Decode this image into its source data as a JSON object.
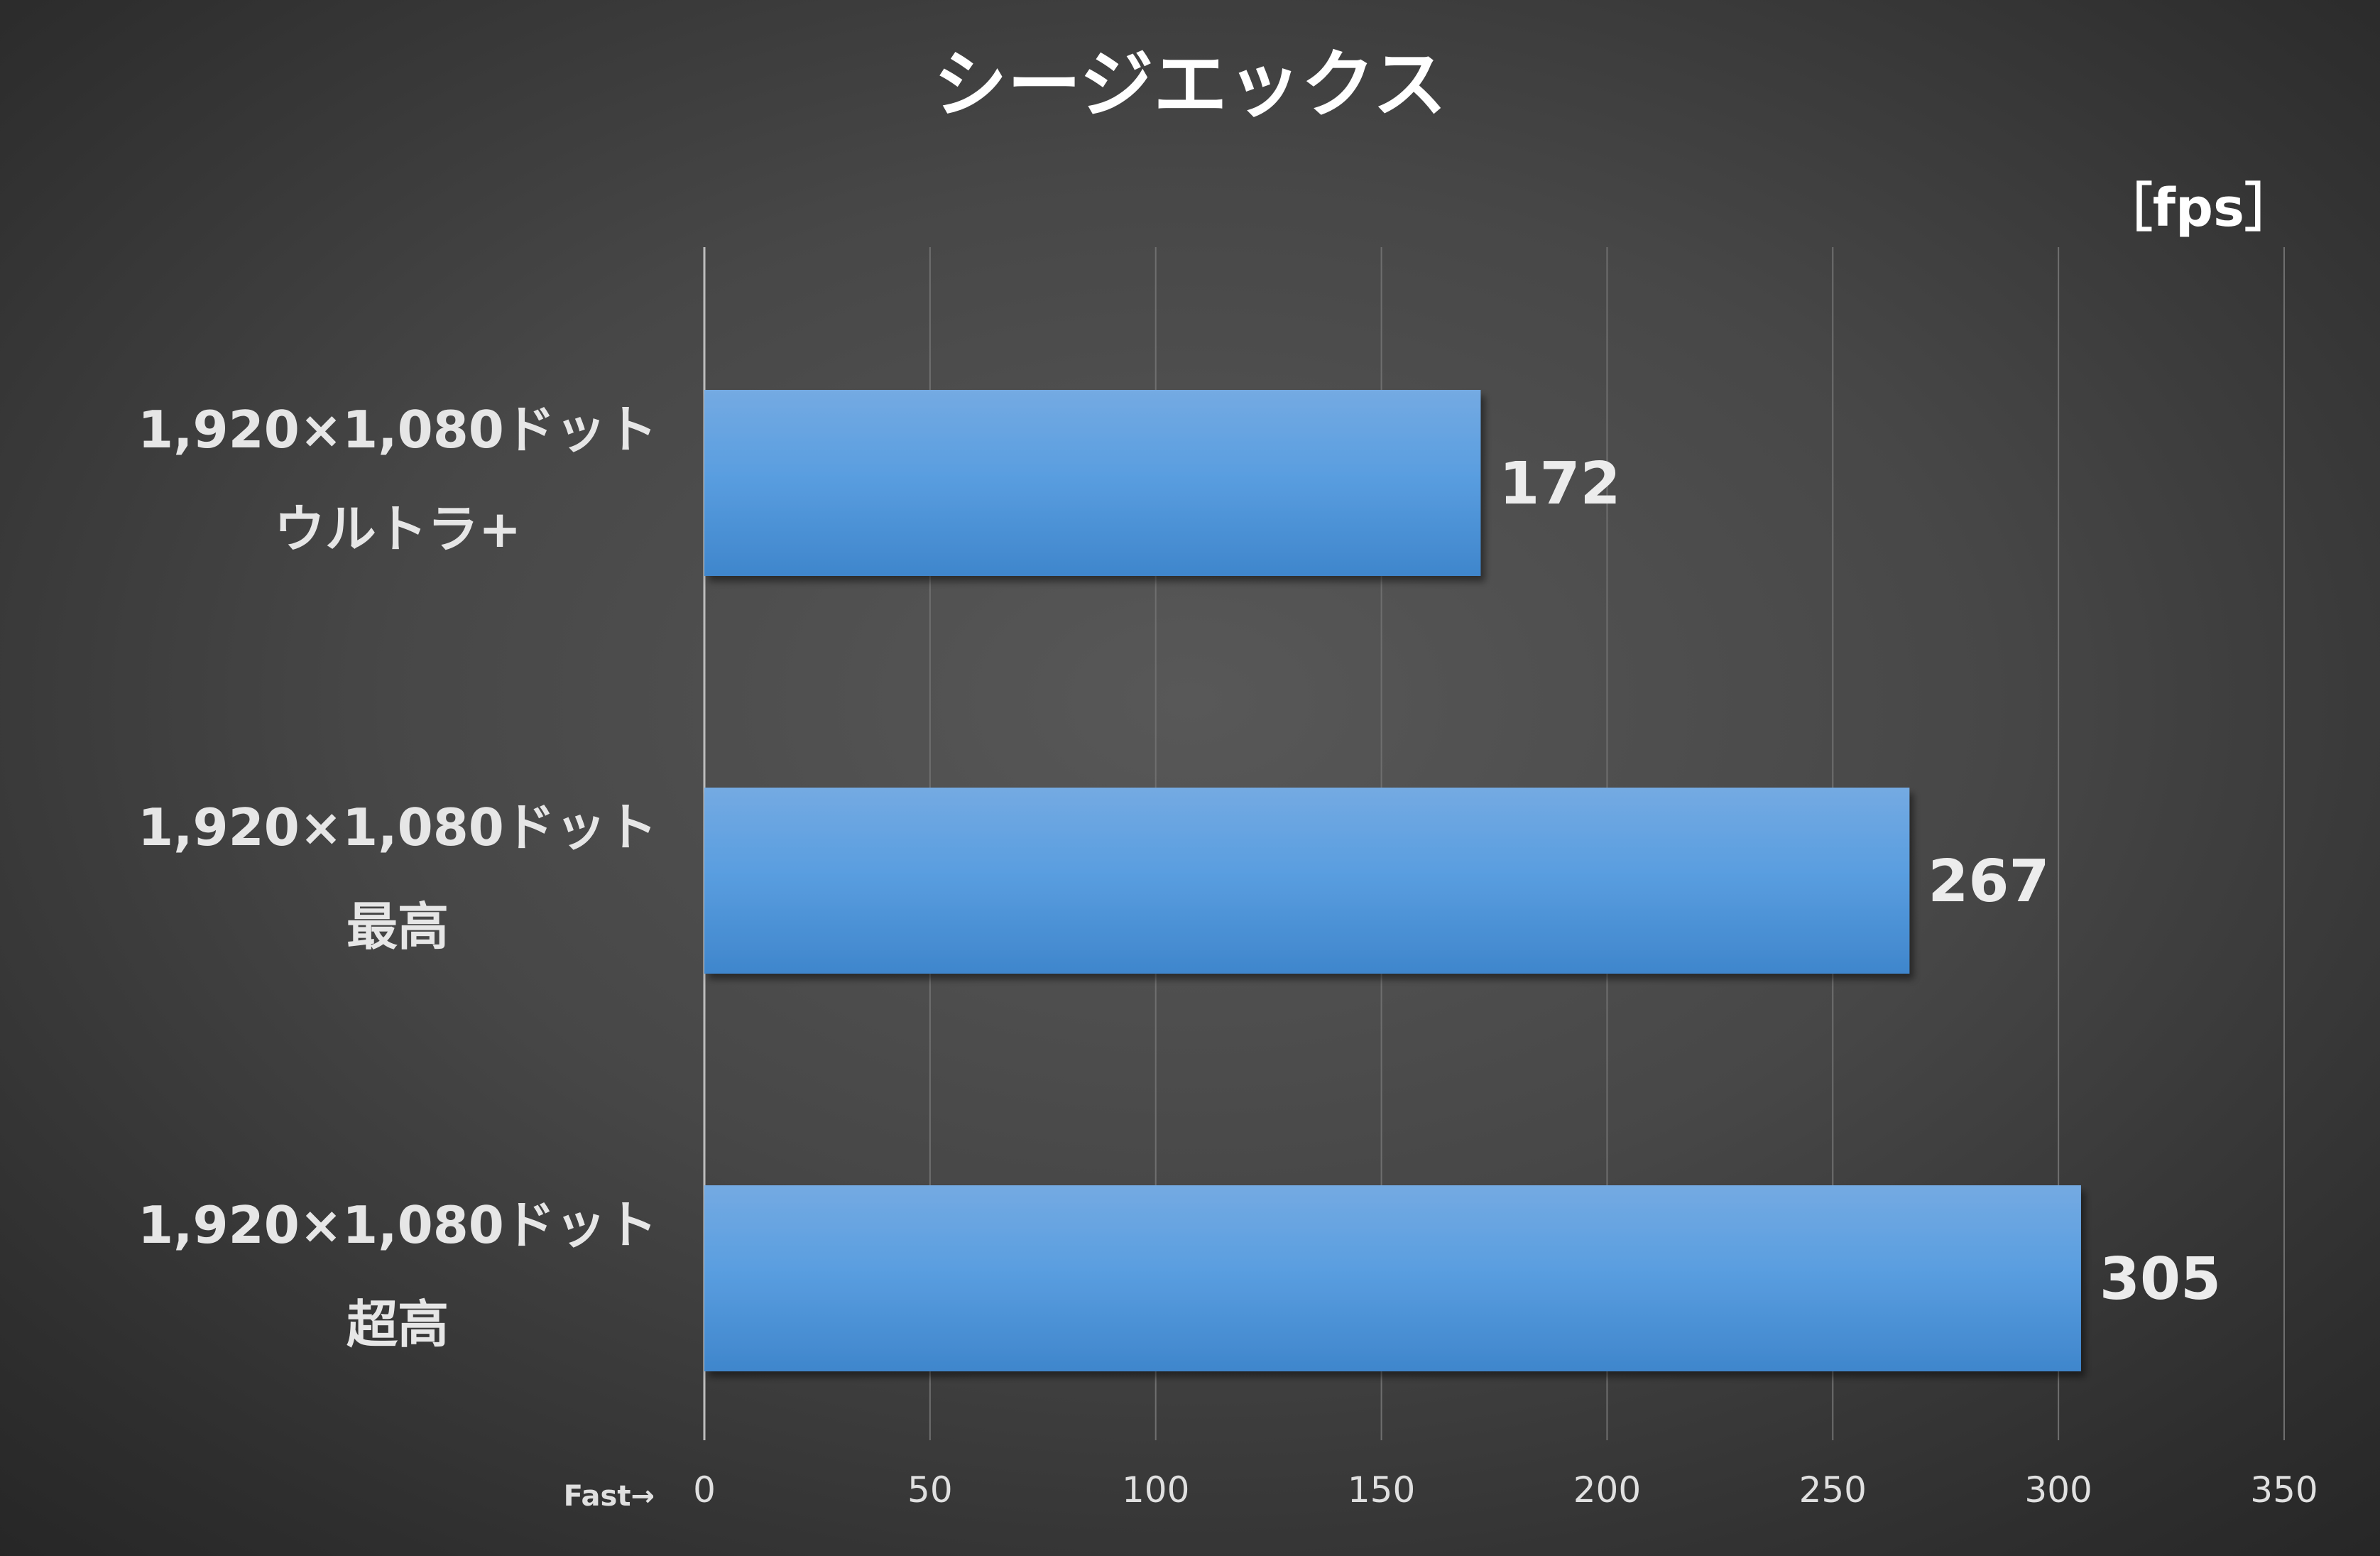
{
  "chart_data": {
    "type": "bar",
    "orientation": "horizontal",
    "title": "シージエックス",
    "unit": "［fps］",
    "axis_prefix": "Fast→",
    "categories": [
      [
        "1,920×1,080ドット",
        "ウルトラ+"
      ],
      [
        "1,920×1,080ドット",
        "最高"
      ],
      [
        "1,920×1,080ドット",
        "超高"
      ]
    ],
    "values": [
      172,
      267,
      305
    ],
    "xlim": [
      0,
      350
    ],
    "ticks": [
      0,
      50,
      100,
      150,
      200,
      250,
      300,
      350
    ],
    "grid": true,
    "legend": "none",
    "colors": {
      "bar_top": "#74aae2",
      "bar_mid": "#5a9ee0",
      "bar_bottom": "#3f86cc"
    }
  }
}
